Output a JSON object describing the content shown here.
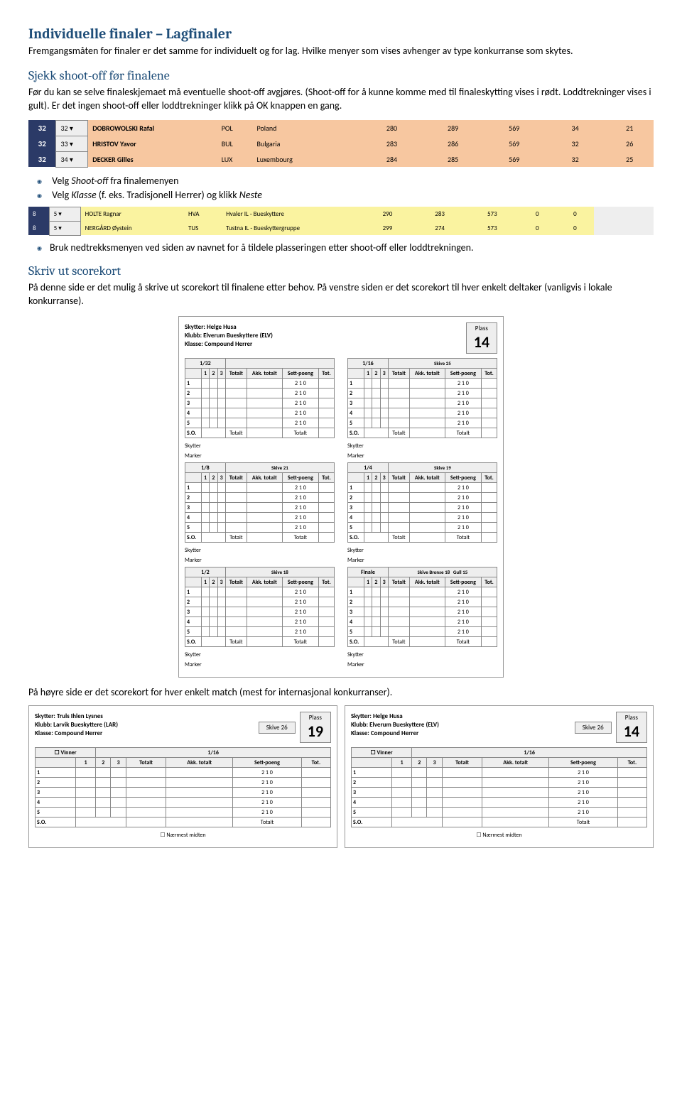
{
  "title1": "Individuelle finaler – Lagfinaler",
  "intro1": "Fremgangsmåten for finaler er det samme for individuelt og for lag. Hvilke menyer som vises avhenger av type konkurranse som skytes.",
  "title2": "Sjekk shoot-off før finalene",
  "intro2": "Før du kan se selve finaleskjemaet må eventuelle shoot-off avgjøres. (Shoot-off for å kunne komme med til finaleskytting vises i rødt. Loddtrekninger vises i gult). Er det ingen shoot-off eller loddtrekninger klikk på OK knappen en gang.",
  "shot1_rows": [
    {
      "rank": "32",
      "sel": "32 ▾",
      "name": "DOBROWOLSKI Rafal",
      "code": "POL",
      "country": "Poland",
      "c1": "280",
      "c2": "289",
      "c3": "569",
      "c4": "34",
      "c5": "21"
    },
    {
      "rank": "32",
      "sel": "33 ▾",
      "name": "HRISTOV Yavor",
      "code": "BUL",
      "country": "Bulgaria",
      "c1": "283",
      "c2": "286",
      "c3": "569",
      "c4": "32",
      "c5": "26"
    },
    {
      "rank": "32",
      "sel": "34 ▾",
      "name": "DECKER Gilles",
      "code": "LUX",
      "country": "Luxembourg",
      "c1": "284",
      "c2": "285",
      "c3": "569",
      "c4": "32",
      "c5": "25"
    }
  ],
  "b1": "Velg ",
  "b1i": "Shoot-off",
  "b1b": " fra finalemenyen",
  "b2": "Velg ",
  "b2i": "Klasse",
  "b2b": " (f. eks. Tradisjonell Herrer) og klikk ",
  "b2c": "Neste",
  "shot2_rows": [
    {
      "a": "8",
      "b": "5 ▾",
      "name": "HOLTE Ragnar",
      "code": "HVA",
      "club": "Hvaler IL - Bueskyttere",
      "c1": "290",
      "c2": "283",
      "c3": "573",
      "c4": "0",
      "c5": "0"
    },
    {
      "a": "8",
      "b": "5 ▾",
      "name": "NERGÅRD Øystein",
      "code": "TUS",
      "club": "Tustna IL - Bueskyttergruppe",
      "c1": "299",
      "c2": "274",
      "c3": "573",
      "c4": "0",
      "c5": "0"
    }
  ],
  "b3": "Bruk nedtrekksmenyen ved siden av navnet for å tildele plasseringen etter shoot-off eller loddtrekningen.",
  "title3": "Skriv ut scorekort",
  "intro3": "På denne side er det mulig å skrive ut scorekort til finalene etter behov. På venstre siden er det scorekort til hver enkelt deltaker (vanligvis i lokale konkurranse).",
  "sc1": {
    "skytter": "Helge Husa",
    "klubb": "Elverum Bueskyttere (ELV)",
    "klasse": "Compound Herrer",
    "plassLbl": "Plass",
    "plass": "14",
    "rounds": [
      "1/32",
      "1/16",
      "1/8",
      "1/4",
      "1/2",
      "Finale"
    ],
    "skive": [
      "",
      "Skive 25",
      "Skive 21",
      "Skive 19",
      "Skive 18",
      "Gull 15"
    ],
    "bronse": "Skive Bronse 18",
    "cols": [
      "",
      "1",
      "2",
      "3",
      "Totalt",
      "Akk. totalt",
      "Sett-poeng",
      "Tot."
    ],
    "rows": [
      "1",
      "2",
      "3",
      "4",
      "5"
    ],
    "so": "S.O.",
    "tot": "Totalt",
    "sk": "Skytter",
    "mk": "Marker"
  },
  "out1": "På høyre side er det scorekort for hver enkelt match (mest for internasjonal konkurranser).",
  "scPair": [
    {
      "skytter": "Truls Ihlen Lysnes",
      "klubb": "Larvik Bueskyttere (LAR)",
      "klasse": "Compound Herrer",
      "skive": "Skive 26",
      "plass": "19"
    },
    {
      "skytter": "Helge Husa",
      "klubb": "Elverum Bueskyttere (ELV)",
      "klasse": "Compound Herrer",
      "skive": "Skive 26",
      "plass": "14"
    }
  ],
  "common": {
    "skytterLbl": "Skytter:",
    "klubbLbl": "Klubb:",
    "klasseLbl": "Klasse:",
    "vinner": "Vinner",
    "r116": "1/16",
    "nm": "Nærmest midten"
  }
}
